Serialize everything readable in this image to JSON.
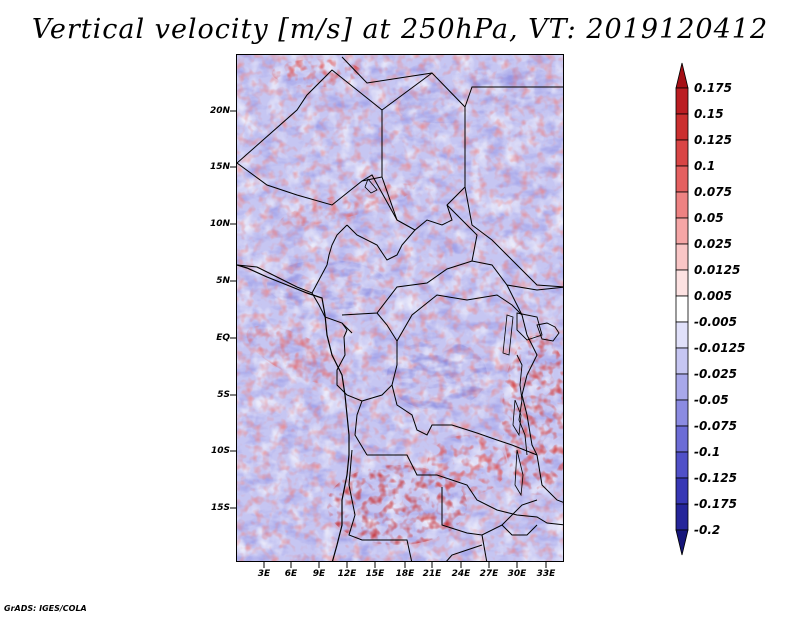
{
  "title": "Vertical velocity [m/s] at 250hPa, VT: 2019120412",
  "footer": "GrADS: IGES/COLA",
  "map": {
    "variable": "Vertical velocity",
    "level": "250hPa",
    "valid_time": "2019120412",
    "units": "m/s",
    "region": "Central & Southern Africa"
  },
  "axes": {
    "lat_labels": [
      "20N",
      "15N",
      "10N",
      "5N",
      "EQ",
      "5S",
      "10S",
      "15S"
    ],
    "lat_values": [
      20,
      15,
      10,
      5,
      0,
      -5,
      -10,
      -15
    ],
    "lon_labels": [
      "3E",
      "6E",
      "9E",
      "12E",
      "15E",
      "18E",
      "21E",
      "24E",
      "27E",
      "30E",
      "33E"
    ],
    "lon_values": [
      3,
      6,
      9,
      12,
      15,
      18,
      21,
      24,
      27,
      30,
      33
    ]
  },
  "colorbar": {
    "labels": [
      "0.175",
      "0.15",
      "0.125",
      "0.1",
      "0.075",
      "0.05",
      "0.025",
      "0.0125",
      "0.005",
      "-0.005",
      "-0.0125",
      "-0.025",
      "-0.05",
      "-0.075",
      "-0.1",
      "-0.125",
      "-0.175",
      "-0.2"
    ],
    "colors": [
      "#a50f15",
      "#bb1d22",
      "#cb2f2f",
      "#d94545",
      "#e56060",
      "#ee8282",
      "#f5a6a6",
      "#f9c6c6",
      "#fde2e2",
      "#ffffff",
      "#e1e1fa",
      "#c6c6f2",
      "#a8a8ea",
      "#8b8be2",
      "#6c6cd6",
      "#5050c8",
      "#3737b5",
      "#25259a",
      "#16167a"
    ]
  }
}
